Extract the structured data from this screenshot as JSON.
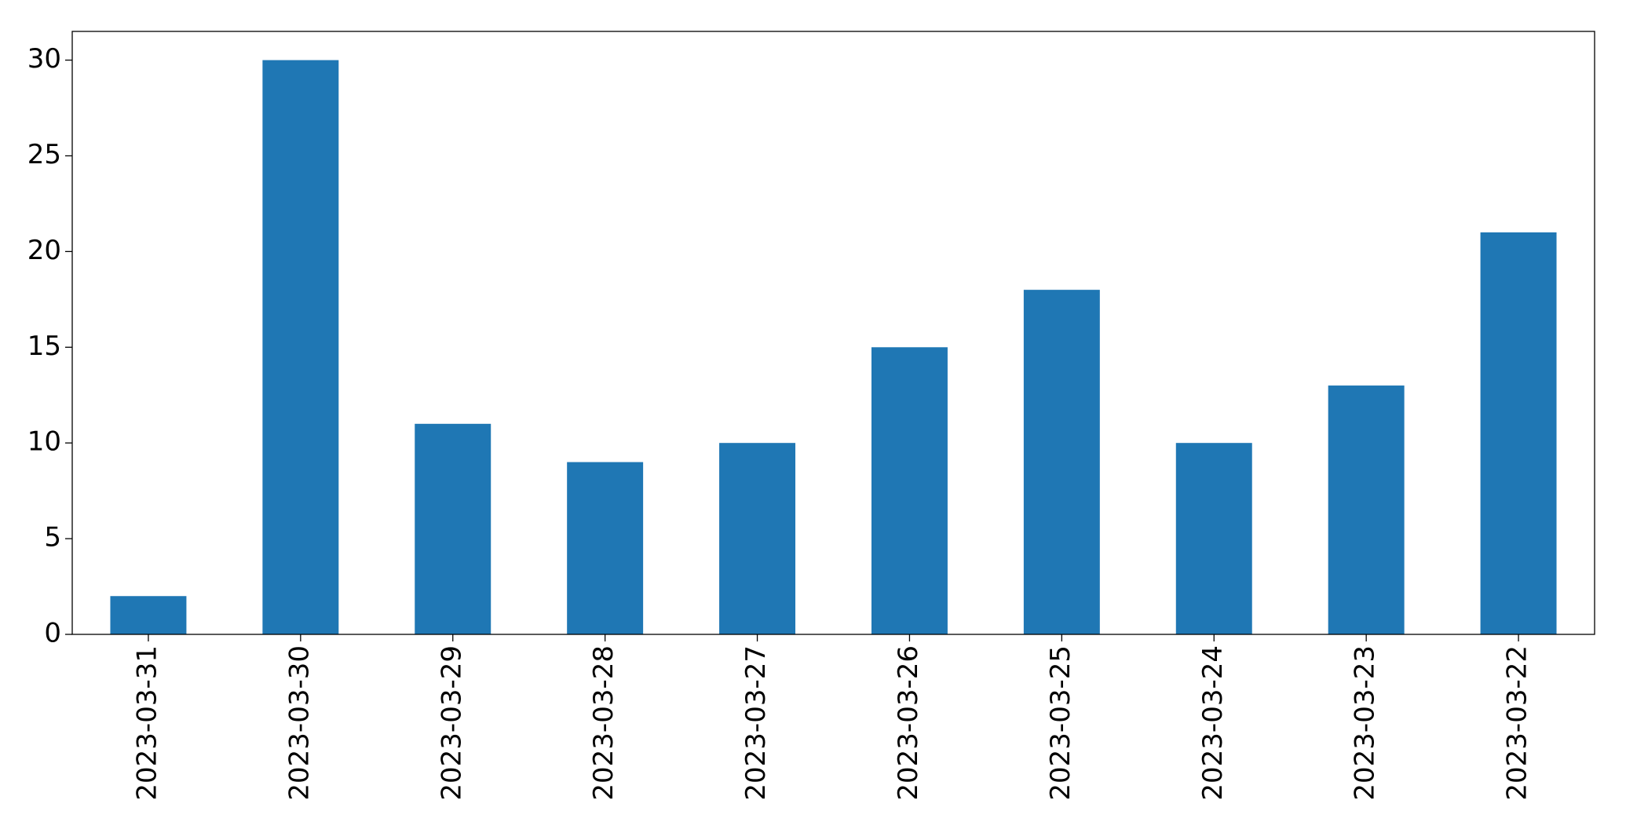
{
  "chart_data": {
    "type": "bar",
    "categories": [
      "2023-03-31",
      "2023-03-30",
      "2023-03-29",
      "2023-03-28",
      "2023-03-27",
      "2023-03-26",
      "2023-03-25",
      "2023-03-24",
      "2023-03-23",
      "2023-03-22"
    ],
    "values": [
      2,
      30,
      11,
      9,
      10,
      15,
      18,
      10,
      13,
      21
    ],
    "color": "#1f77b4",
    "ylim": [
      0,
      31.5
    ],
    "yticks": [
      0,
      5,
      10,
      15,
      20,
      25,
      30
    ],
    "grid": false
  }
}
